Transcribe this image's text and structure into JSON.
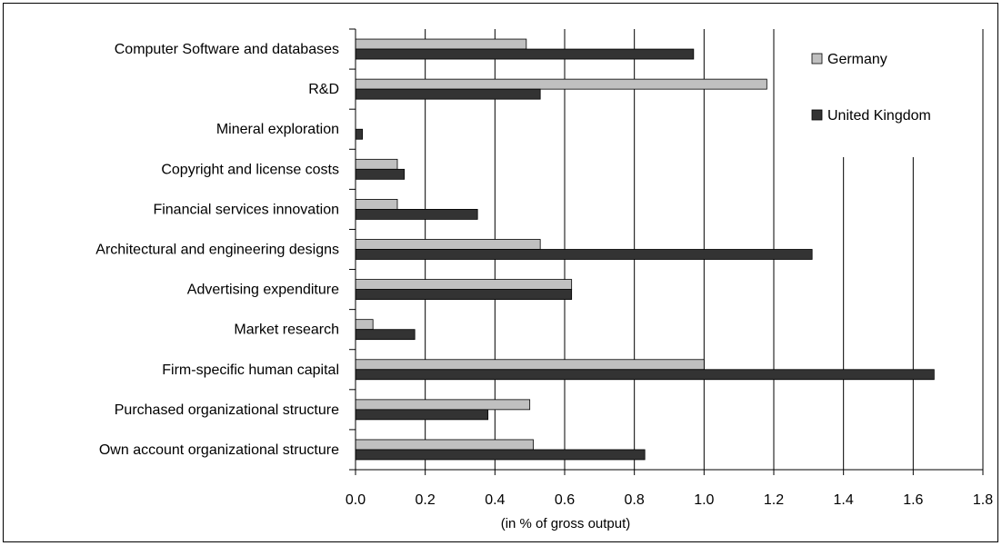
{
  "chart_data": {
    "type": "bar",
    "orientation": "horizontal",
    "title": "",
    "xlabel": "(in % of gross output)",
    "ylabel": "",
    "xlim": [
      0,
      1.8
    ],
    "xticks": [
      "0.0",
      "0.2",
      "0.4",
      "0.6",
      "0.8",
      "1.0",
      "1.2",
      "1.4",
      "1.6",
      "1.8"
    ],
    "grid": "vertical",
    "legend_position": "top-right",
    "categories": [
      "Computer Software and databases",
      "R&D",
      "Mineral exploration",
      "Copyright and license costs",
      "Financial services innovation",
      "Architectural and engineering designs",
      "Advertising expenditure",
      "Market research",
      "Firm-specific human capital",
      "Purchased organizational structure",
      "Own account organizational structure"
    ],
    "series": [
      {
        "name": "Germany",
        "color": "#c0c0c0",
        "values": [
          0.49,
          1.18,
          0.0,
          0.12,
          0.12,
          0.53,
          0.62,
          0.05,
          1.0,
          0.5,
          0.51
        ]
      },
      {
        "name": "United Kingdom",
        "color": "#333333",
        "values": [
          0.97,
          0.53,
          0.02,
          0.14,
          0.35,
          1.31,
          0.62,
          0.17,
          1.66,
          0.38,
          0.83
        ]
      }
    ]
  }
}
